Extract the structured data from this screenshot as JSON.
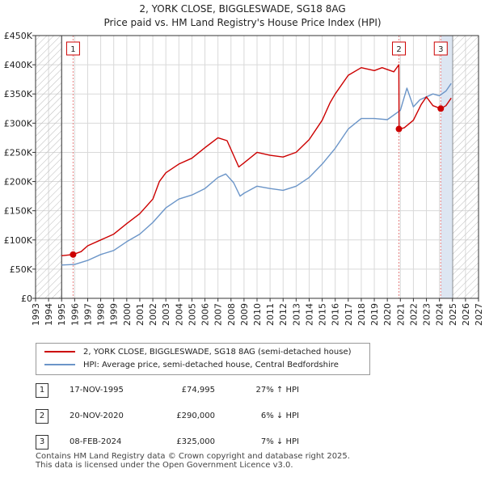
{
  "title_line1": "2, YORK CLOSE, BIGGLESWADE, SG18 8AG",
  "title_line2": "Price paid vs. HM Land Registry's House Price Index (HPI)",
  "chart_data": {
    "type": "line",
    "xlim": [
      1993,
      2027
    ],
    "ylim": [
      0,
      450000
    ],
    "x_ticks": [
      "1993",
      "1994",
      "1995",
      "1996",
      "1997",
      "1998",
      "1999",
      "2000",
      "2001",
      "2002",
      "2003",
      "2004",
      "2005",
      "2006",
      "2007",
      "2008",
      "2009",
      "2010",
      "2011",
      "2012",
      "2013",
      "2014",
      "2015",
      "2016",
      "2017",
      "2018",
      "2019",
      "2020",
      "2021",
      "2022",
      "2023",
      "2024",
      "2025",
      "2026",
      "2027"
    ],
    "y_ticks": [
      {
        "value": 0,
        "label": "£0"
      },
      {
        "value": 50000,
        "label": "£50K"
      },
      {
        "value": 100000,
        "label": "£100K"
      },
      {
        "value": 150000,
        "label": "£150K"
      },
      {
        "value": 200000,
        "label": "£200K"
      },
      {
        "value": 250000,
        "label": "£250K"
      },
      {
        "value": 300000,
        "label": "£300K"
      },
      {
        "value": 350000,
        "label": "£350K"
      },
      {
        "value": 400000,
        "label": "£400K"
      },
      {
        "value": 450000,
        "label": "£450K"
      }
    ],
    "hatch_before": 1995.0,
    "hatch_after": 2025.0,
    "grid": true,
    "colors": {
      "property": "#cc0000",
      "hpi": "#6b95c8",
      "sale_line": "#e88080",
      "shade": "#dde6f2"
    },
    "series": [
      {
        "name": "2, YORK CLOSE, BIGGLESWADE, SG18 8AG (semi-detached house)",
        "points": [
          [
            1995.0,
            73000
          ],
          [
            1995.88,
            74995
          ],
          [
            1996.5,
            80000
          ],
          [
            1997,
            90000
          ],
          [
            1998,
            100000
          ],
          [
            1999,
            110000
          ],
          [
            2000,
            128000
          ],
          [
            2001,
            145000
          ],
          [
            2002,
            170000
          ],
          [
            2002.5,
            200000
          ],
          [
            2003,
            215000
          ],
          [
            2004,
            230000
          ],
          [
            2005,
            240000
          ],
          [
            2006,
            258000
          ],
          [
            2007,
            275000
          ],
          [
            2007.7,
            270000
          ],
          [
            2008.2,
            245000
          ],
          [
            2008.6,
            225000
          ],
          [
            2009,
            232000
          ],
          [
            2010,
            250000
          ],
          [
            2011,
            245000
          ],
          [
            2012,
            242000
          ],
          [
            2013,
            250000
          ],
          [
            2014,
            272000
          ],
          [
            2015,
            305000
          ],
          [
            2015.6,
            335000
          ],
          [
            2016,
            350000
          ],
          [
            2017,
            382000
          ],
          [
            2018,
            395000
          ],
          [
            2019,
            390000
          ],
          [
            2019.6,
            395000
          ],
          [
            2020.5,
            388000
          ],
          [
            2020.88,
            400000
          ],
          [
            2020.9,
            290000
          ],
          [
            2021.3,
            292000
          ],
          [
            2022,
            305000
          ],
          [
            2022.6,
            332000
          ],
          [
            2023,
            345000
          ],
          [
            2023.5,
            330000
          ],
          [
            2024.1,
            325000
          ],
          [
            2024.5,
            330000
          ],
          [
            2024.9,
            343000
          ]
        ]
      },
      {
        "name": "HPI: Average price, semi-detached house, Central Bedfordshire",
        "points": [
          [
            1995.0,
            57000
          ],
          [
            1996,
            58000
          ],
          [
            1997,
            65000
          ],
          [
            1998,
            75000
          ],
          [
            1999,
            82000
          ],
          [
            2000,
            97000
          ],
          [
            2001,
            110000
          ],
          [
            2002,
            130000
          ],
          [
            2003,
            155000
          ],
          [
            2004,
            170000
          ],
          [
            2005,
            177000
          ],
          [
            2006,
            188000
          ],
          [
            2007,
            207000
          ],
          [
            2007.6,
            213000
          ],
          [
            2008.2,
            198000
          ],
          [
            2008.7,
            175000
          ],
          [
            2009,
            180000
          ],
          [
            2010,
            192000
          ],
          [
            2011,
            188000
          ],
          [
            2012,
            185000
          ],
          [
            2013,
            192000
          ],
          [
            2014,
            207000
          ],
          [
            2015,
            230000
          ],
          [
            2016,
            257000
          ],
          [
            2017,
            290000
          ],
          [
            2018,
            308000
          ],
          [
            2019,
            308000
          ],
          [
            2020,
            306000
          ],
          [
            2021,
            322000
          ],
          [
            2021.5,
            360000
          ],
          [
            2022,
            328000
          ],
          [
            2022.5,
            340000
          ],
          [
            2023,
            345000
          ],
          [
            2023.5,
            350000
          ],
          [
            2024,
            347000
          ],
          [
            2024.5,
            355000
          ],
          [
            2024.9,
            368000
          ]
        ]
      }
    ],
    "sales": [
      {
        "n": "1",
        "x": 1995.88,
        "y": 74995
      },
      {
        "n": "2",
        "x": 2020.89,
        "y": 290000
      },
      {
        "n": "3",
        "x": 2024.1,
        "y": 325000
      }
    ]
  },
  "legend": {
    "property_label": "2, YORK CLOSE, BIGGLESWADE, SG18 8AG (semi-detached house)",
    "hpi_label": "HPI: Average price, semi-detached house, Central Bedfordshire"
  },
  "sales_table": [
    {
      "n": "1",
      "date": "17-NOV-1995",
      "price": "£74,995",
      "hpi": "27% ↑ HPI"
    },
    {
      "n": "2",
      "date": "20-NOV-2020",
      "price": "£290,000",
      "hpi": "6% ↓ HPI"
    },
    {
      "n": "3",
      "date": "08-FEB-2024",
      "price": "£325,000",
      "hpi": "7% ↓ HPI"
    }
  ],
  "footer_line1": "Contains HM Land Registry data © Crown copyright and database right 2025.",
  "footer_line2": "This data is licensed under the Open Government Licence v3.0."
}
